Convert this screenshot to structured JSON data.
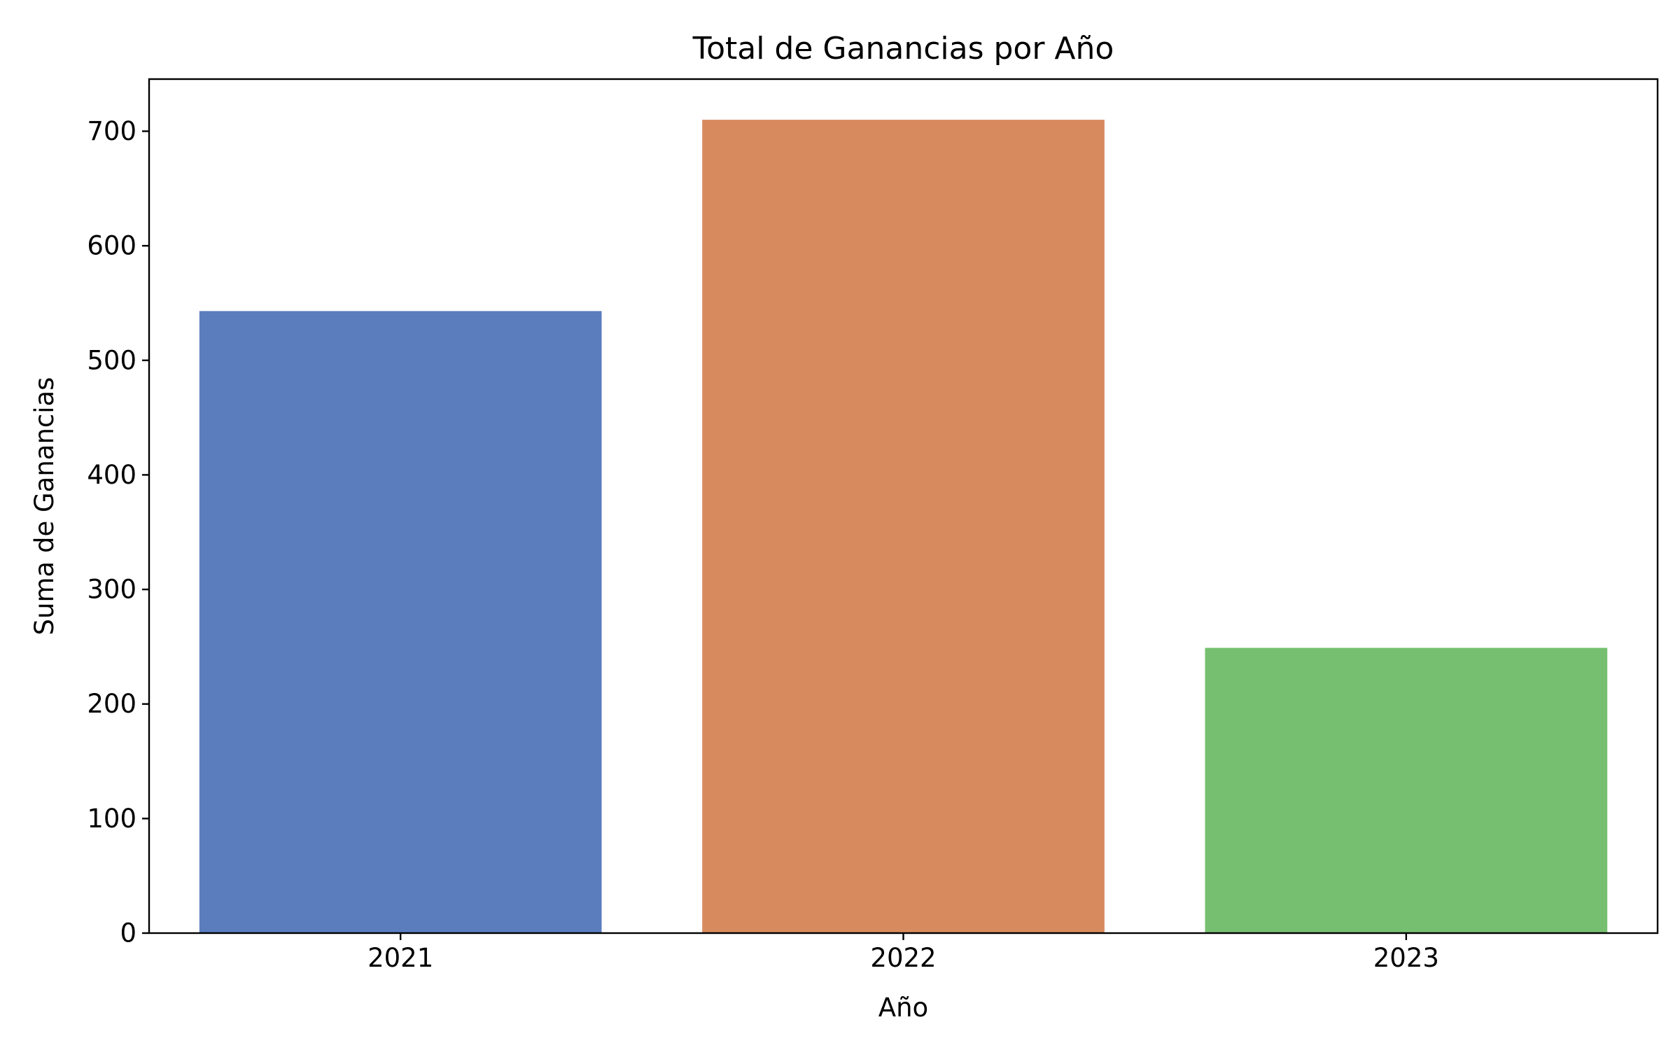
{
  "chart_data": {
    "type": "bar",
    "title": "Total de Ganancias por Año",
    "xlabel": "Año",
    "ylabel": "Suma de Ganancias",
    "categories": [
      "2021",
      "2022",
      "2023"
    ],
    "values": [
      543,
      710,
      249
    ],
    "colors": [
      "#5b7dbe",
      "#d88a5f",
      "#76bf70"
    ],
    "ylim": [
      0,
      745.5
    ],
    "yticks": [
      0,
      100,
      200,
      300,
      400,
      500,
      600,
      700
    ],
    "grid": false,
    "legend": "none"
  }
}
